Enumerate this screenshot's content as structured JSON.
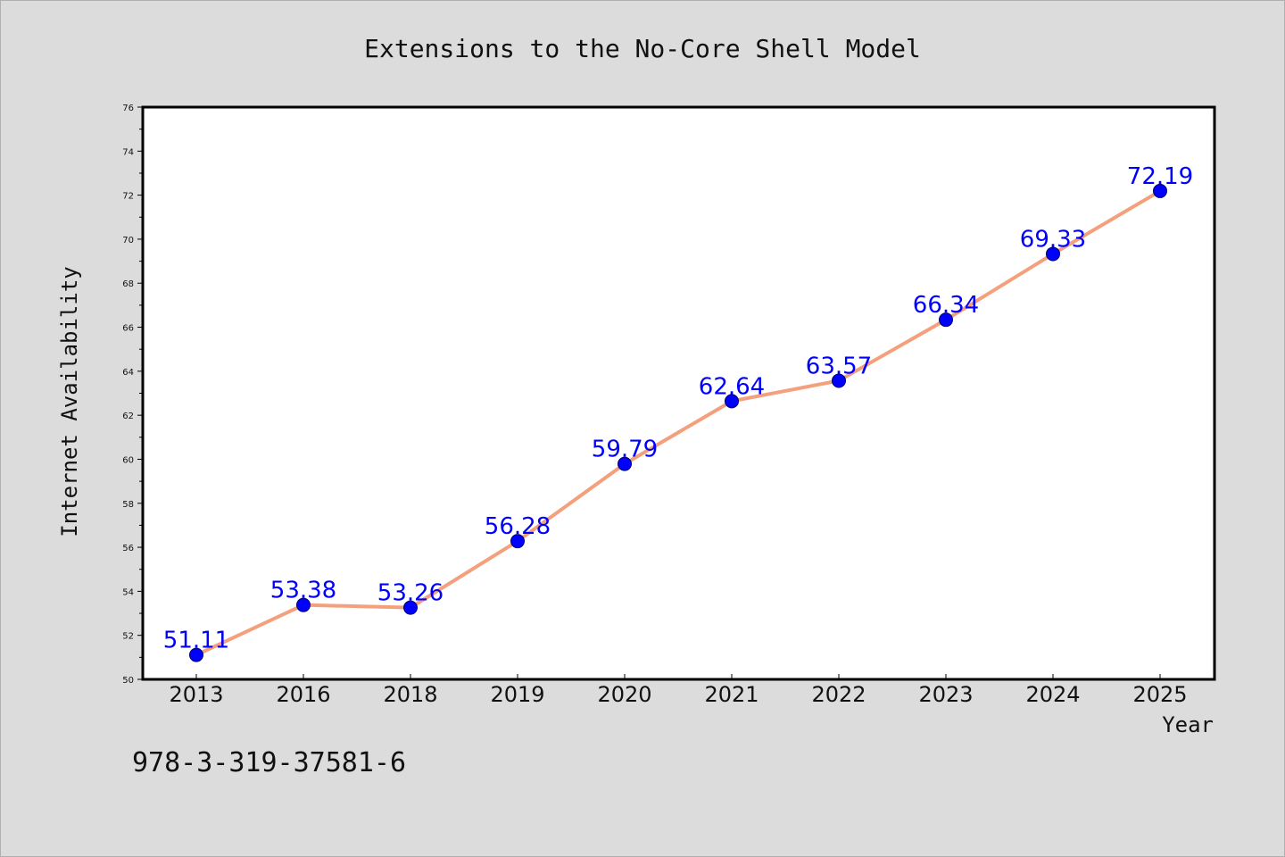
{
  "chart_data": {
    "type": "line",
    "title": "Extensions to the No-Core Shell Model",
    "xlabel": "Year",
    "ylabel": "Internet Availability",
    "categories": [
      "2013",
      "2016",
      "2018",
      "2019",
      "2020",
      "2021",
      "2022",
      "2023",
      "2024",
      "2025"
    ],
    "values": [
      51.11,
      53.38,
      53.26,
      56.28,
      59.79,
      62.64,
      63.57,
      66.34,
      69.33,
      72.19
    ],
    "data_labels": [
      "51.11",
      "53.38",
      "53.26",
      "56.28",
      "59.79",
      "62.64",
      "63.57",
      "66.34",
      "69.33",
      "72.19"
    ],
    "ylim": [
      50,
      76
    ],
    "yticks": [
      "50",
      "52",
      "54",
      "56",
      "58",
      "60",
      "62",
      "64",
      "66",
      "68",
      "70",
      "72",
      "74",
      "76"
    ],
    "grid": false,
    "line_color": "#f4a07c",
    "marker_color": "#0000ff",
    "label_color": "#0000ff"
  },
  "footnote": "978-3-319-37581-6"
}
